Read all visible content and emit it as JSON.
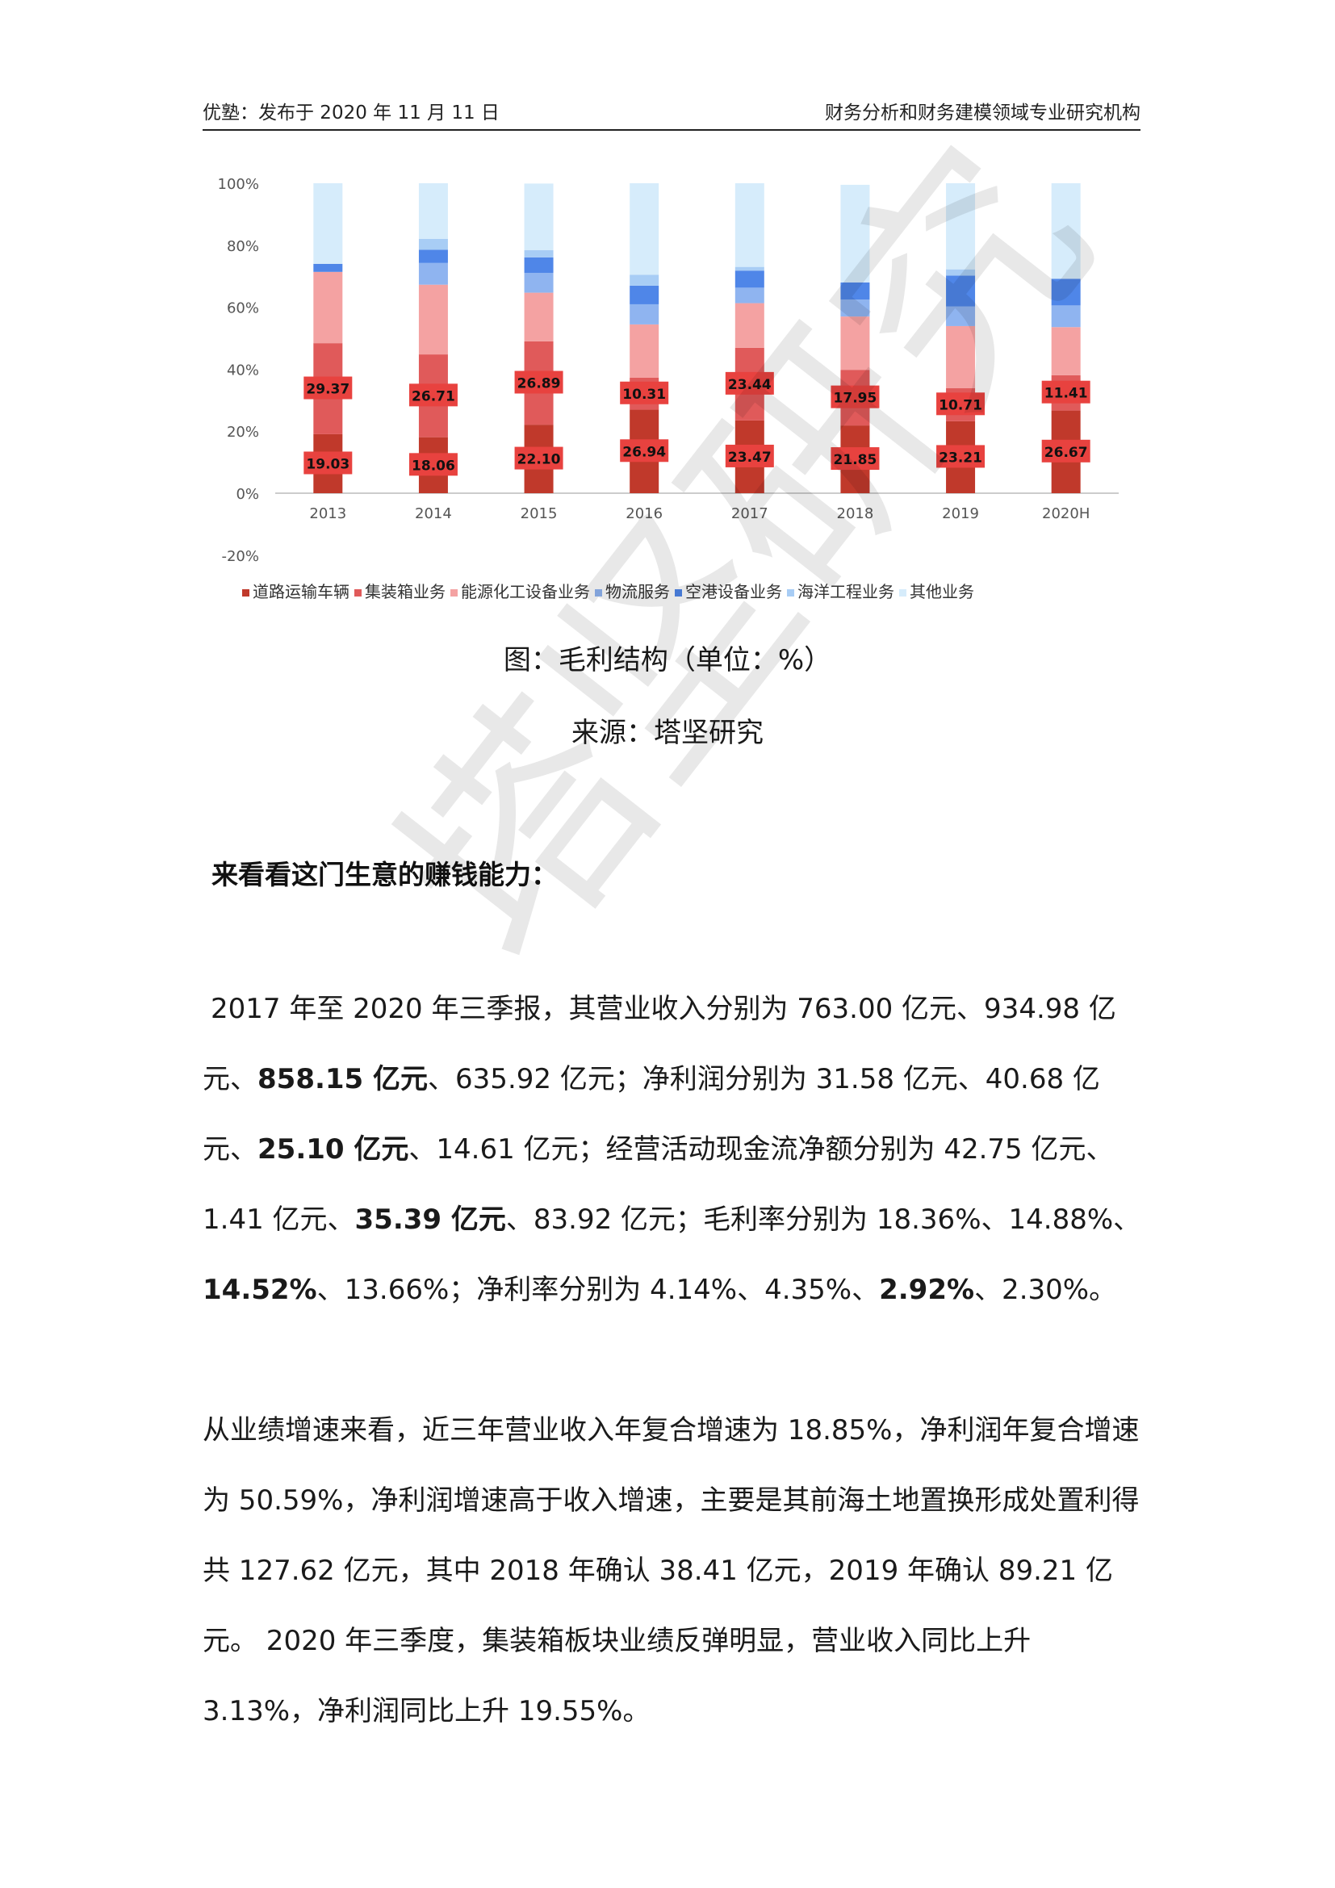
{
  "header": {
    "left": "优塾：发布于 2020 年 11 月 11 日",
    "right": "财务分析和财务建模领域专业研究机构"
  },
  "chart_data": {
    "type": "bar",
    "stacked": true,
    "categories": [
      "2013",
      "2014",
      "2015",
      "2016",
      "2017",
      "2018",
      "2019",
      "2020H"
    ],
    "y_ticks": [
      "100%",
      "80%",
      "60%",
      "40%",
      "20%",
      "0%",
      "-20%"
    ],
    "ylim": [
      -20,
      100
    ],
    "grid": false,
    "legend_position": "bottom",
    "series": [
      {
        "name": "道路运输车辆",
        "color": "#c0392b",
        "values": [
          19.03,
          18.06,
          22.1,
          26.94,
          23.47,
          21.85,
          23.21,
          26.67
        ]
      },
      {
        "name": "集装箱业务",
        "color": "#e05a5a",
        "values": [
          29.37,
          26.71,
          26.89,
          10.31,
          23.44,
          17.95,
          10.71,
          11.41
        ]
      },
      {
        "name": "能源化工设备业务",
        "color": "#f4a2a2",
        "values": [
          23.0,
          22.5,
          15.7,
          17.2,
          14.4,
          17.2,
          20.0,
          15.5
        ]
      },
      {
        "name": "物流服务",
        "color": "#8fb4f0",
        "values": [
          0,
          7.0,
          6.4,
          6.5,
          5.0,
          5.5,
          6.3,
          7.0
        ]
      },
      {
        "name": "空港设备业务",
        "color": "#4f86e8",
        "values": [
          2.6,
          4.3,
          5.0,
          6.0,
          5.5,
          5.5,
          10.0,
          8.6
        ]
      },
      {
        "name": "海洋工程业务",
        "color": "#a8cdf5",
        "values": [
          0,
          3.5,
          2.3,
          3.5,
          1.2,
          0,
          2.0,
          0
        ]
      },
      {
        "name": "其他业务",
        "color": "#d6ecfb",
        "values": [
          26.0,
          17.93,
          21.51,
          29.55,
          26.99,
          31.5,
          27.78,
          30.82
        ]
      }
    ],
    "labeled_series": [
      "道路运输车辆",
      "集装箱业务"
    ]
  },
  "caption": {
    "figure": "图：毛利结构（单位：%）",
    "source": "来源：塔坚研究"
  },
  "heading": "来看看这门生意的赚钱能力：",
  "para1": [
    {
      "t": "2017 年至 2020 年三季报，其营业收入分别为 763.00 亿元、934.98 亿元、"
    },
    {
      "t": "858.15 亿元",
      "b": true
    },
    {
      "t": "、635.92 亿元；净利润分别为 31.58 亿元、40.68 亿元、"
    },
    {
      "t": "25.10 亿元",
      "b": true
    },
    {
      "t": "、14.61 亿元；经营活动现金流净额分别为 42.75 亿元、1.41 亿元、"
    },
    {
      "t": "35.39 亿元",
      "b": true
    },
    {
      "t": "、83.92 亿元；毛利率分别为 18.36%、14.88%、"
    },
    {
      "t": "14.52%",
      "b": true
    },
    {
      "t": "、13.66%；净利率分别为 4.14%、4.35%、"
    },
    {
      "t": "2.92%",
      "b": true
    },
    {
      "t": "、2.30%。"
    }
  ],
  "para2": "从业绩增速来看，近三年营业收入年复合增速为 18.85%，净利润年复合增速为 50.59%，净利润增速高于收入增速，主要是其前海土地置换形成处置利得共 127.62 亿元，其中 2018 年确认 38.41 亿元，2019 年确认 89.21 亿元。 2020 年三季度，集装箱板块业绩反弹明显，营业收入同比上升 3.13%，净利润同比上升 19.55%。",
  "watermark": "塔坚研究"
}
